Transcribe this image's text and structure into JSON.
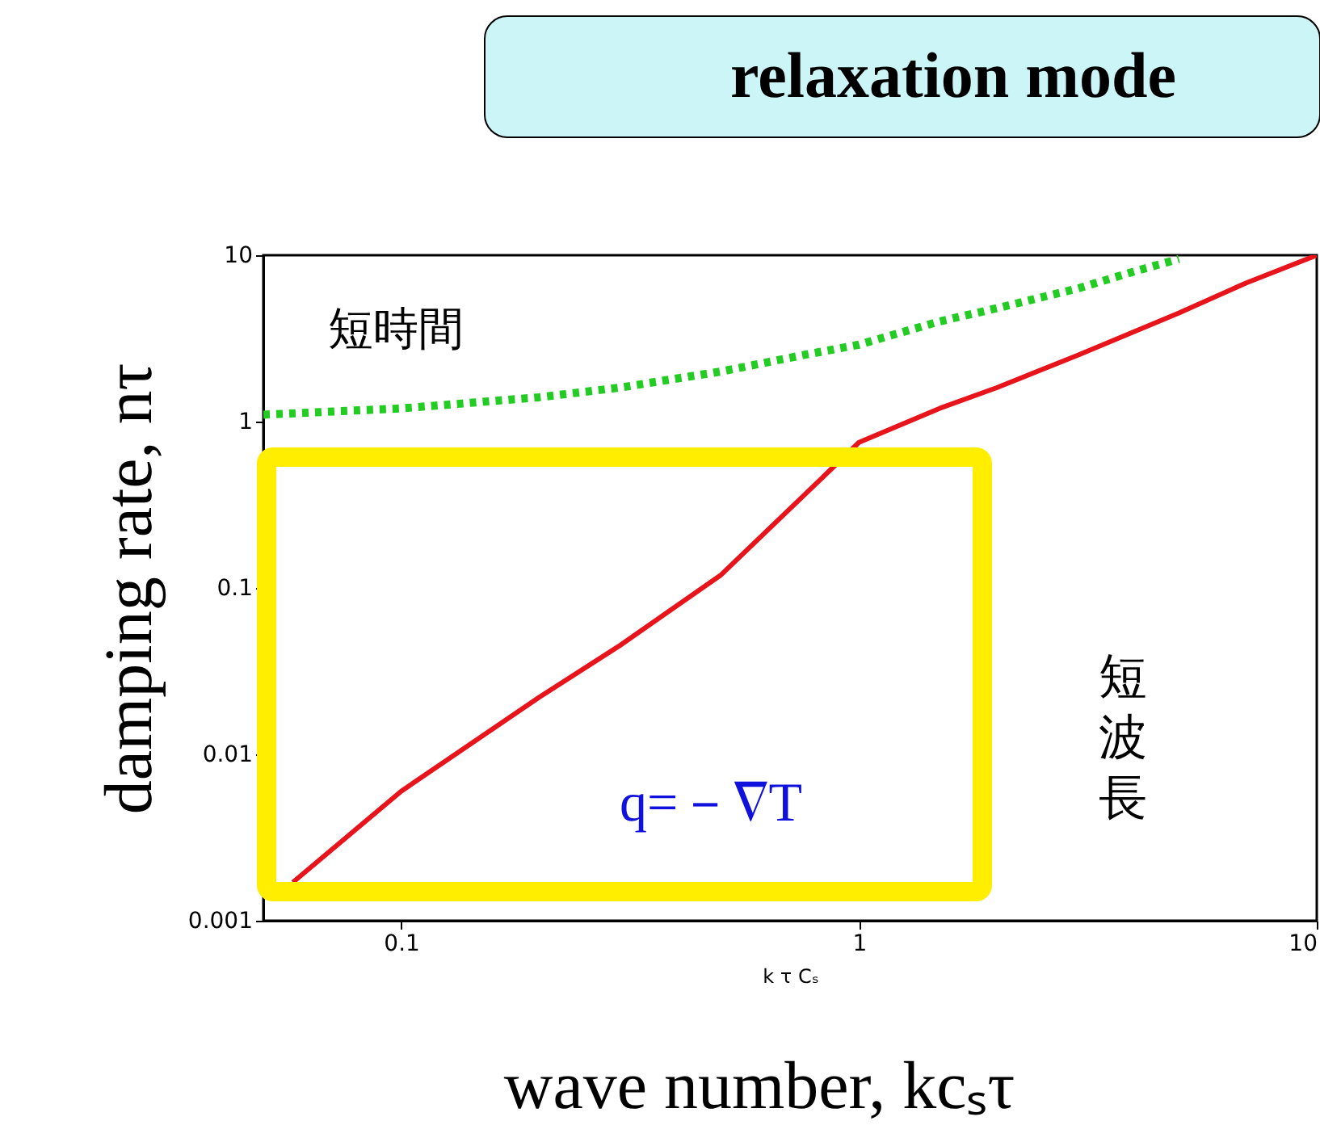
{
  "chart_data": {
    "type": "line",
    "xlabel": "k τ Cₛ",
    "ylabel": "damping rate, nτ",
    "log": "xy",
    "grid": false,
    "xlim": [
      0.05,
      10
    ],
    "xticks": [
      0.1,
      1,
      10
    ],
    "ylim": [
      0.001,
      10
    ],
    "yticks": [
      0.001,
      0.01,
      0.1,
      1,
      10
    ],
    "series": [
      {
        "color": "#e8141b",
        "line_style": "solid",
        "x": [
          0.058,
          0.1,
          0.2,
          0.3,
          0.5,
          0.75,
          1,
          1.5,
          2,
          3,
          5,
          7,
          10
        ],
        "values": [
          0.0017,
          0.006,
          0.022,
          0.045,
          0.12,
          0.35,
          0.75,
          1.2,
          1.6,
          2.5,
          4.5,
          6.8,
          10
        ]
      },
      {
        "color": "#22cc22",
        "line_style": "dotted",
        "x": [
          0.05,
          0.1,
          0.2,
          0.3,
          0.5,
          0.75,
          1,
          1.5,
          2,
          3,
          4,
          5
        ],
        "values": [
          1.1,
          1.2,
          1.4,
          1.6,
          2.0,
          2.5,
          2.9,
          4,
          4.8,
          6.3,
          8,
          9.5
        ]
      }
    ],
    "annotations": [
      "relaxation mode",
      "短時間",
      "短波長",
      "q=－∇T",
      "wave number, kcₛτ"
    ]
  }
}
